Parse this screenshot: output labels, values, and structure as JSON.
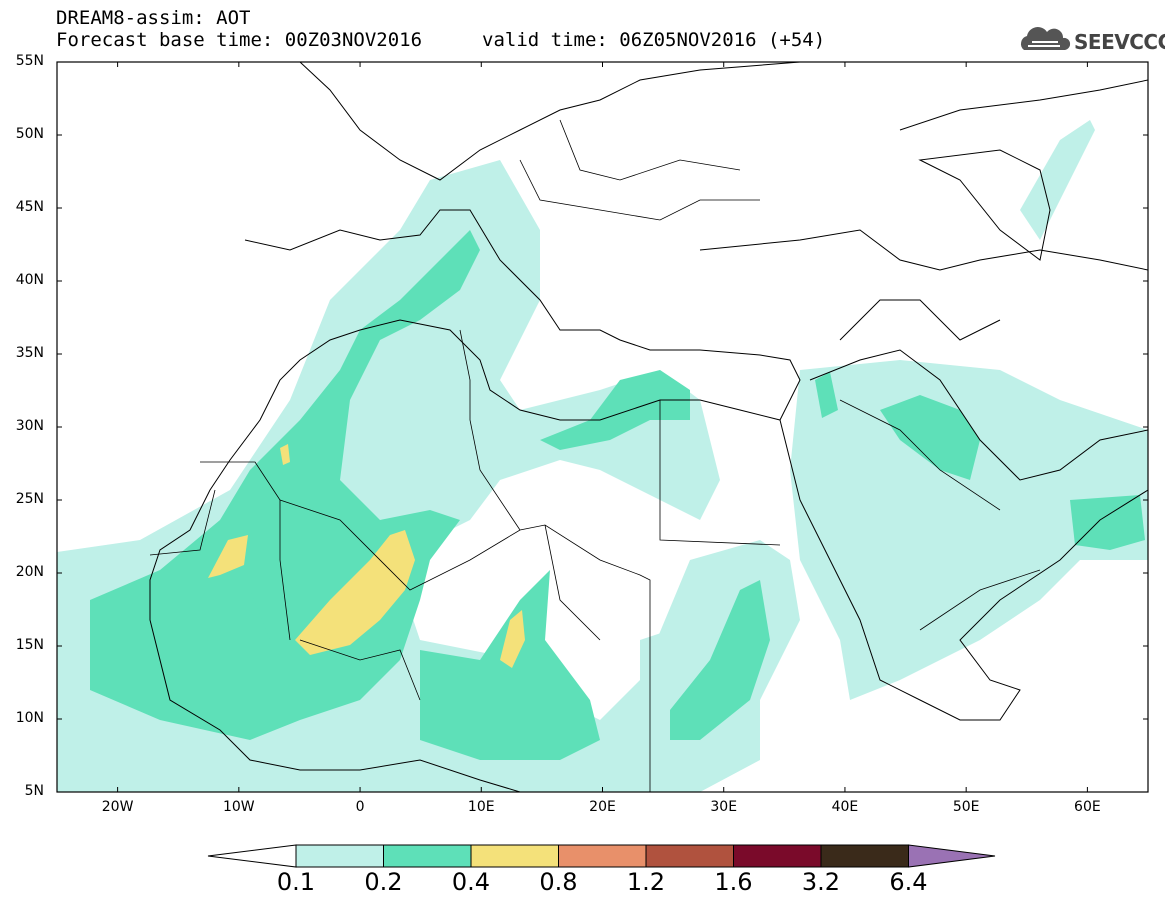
{
  "header": {
    "model": "DREAM8-assim: AOT",
    "base_time": "Forecast base time: 00Z03NOV2016",
    "valid_time": "valid time: 06Z05NOV2016 (+54)"
  },
  "logo": {
    "text": "SEEVCCC",
    "icon": "cloud-icon"
  },
  "map": {
    "lon_range": [
      -25,
      65
    ],
    "lat_range": [
      5,
      55
    ],
    "lat_labels": [
      "55N",
      "50N",
      "45N",
      "40N",
      "35N",
      "30N",
      "25N",
      "20N",
      "15N",
      "10N",
      "5N"
    ],
    "lon_labels": [
      "20W",
      "10W",
      "0",
      "10E",
      "20E",
      "30E",
      "40E",
      "50E",
      "60E"
    ]
  },
  "legend": {
    "colors": [
      "#bff0e8",
      "#5ee0b8",
      "#f4e17a",
      "#e8906a",
      "#b0523e",
      "#7a0a2a",
      "#3a2a1a"
    ],
    "extend_low_color": "#ffffff",
    "extend_high_color": "#9a72b4",
    "labels": [
      "0.1",
      "0.2",
      "0.4",
      "0.8",
      "1.2",
      "1.6",
      "3.2",
      "6.4"
    ]
  }
}
